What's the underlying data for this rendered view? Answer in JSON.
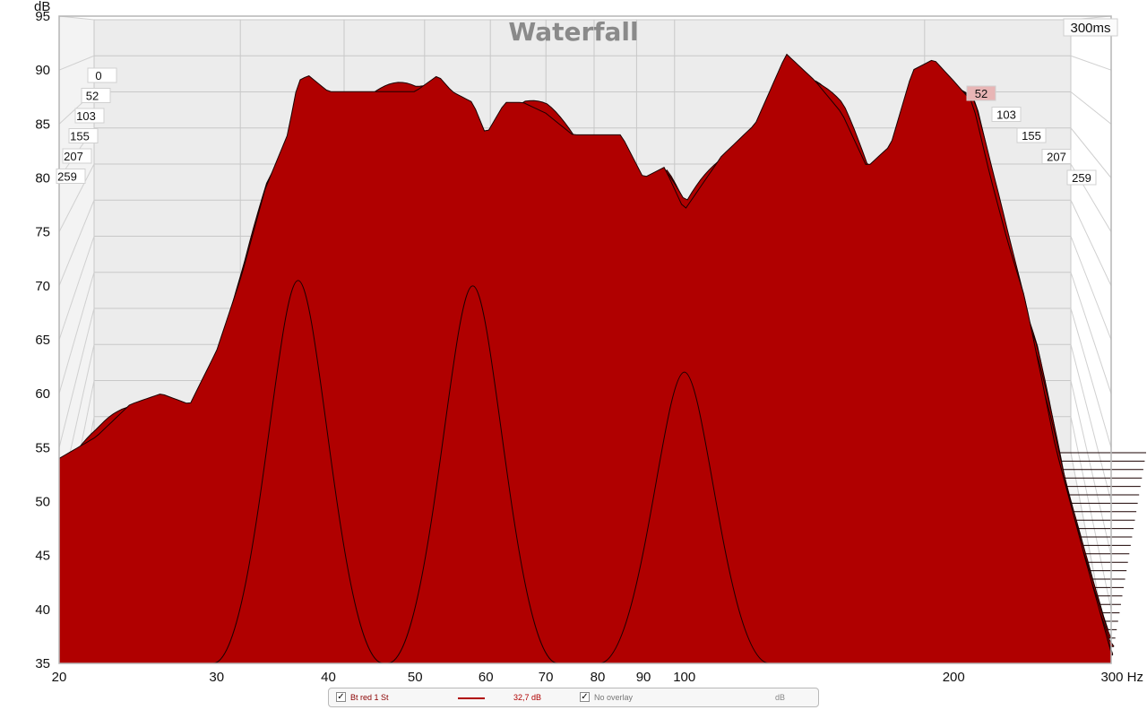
{
  "chart_data": {
    "type": "area",
    "title": "Waterfall",
    "time_window": "300ms",
    "ylabel": "dB",
    "xunit": "Hz",
    "x_scale": "log",
    "xlim": [
      20,
      300
    ],
    "ylim": [
      35,
      95
    ],
    "x_ticks": [
      "20",
      "30",
      "40",
      "50",
      "60",
      "70",
      "80",
      "90",
      "100",
      "200",
      "300 Hz"
    ],
    "y_ticks": [
      "35",
      "40",
      "45",
      "50",
      "55",
      "60",
      "65",
      "70",
      "75",
      "80",
      "85",
      "90",
      "95"
    ],
    "time_slice_labels_left": [
      "0",
      "52",
      "103",
      "155",
      "207",
      "259"
    ],
    "time_slice_labels_right": [
      "52",
      "103",
      "155",
      "207",
      "259"
    ],
    "fill_color": "#b00000",
    "grid": true,
    "front_slice_ms": 0,
    "front_slice": {
      "freq_hz": [
        20,
        22,
        24,
        26,
        28,
        30,
        32,
        34,
        36,
        37,
        38,
        40,
        42,
        45,
        48,
        50,
        53,
        55,
        58,
        60,
        63,
        66,
        70,
        75,
        80,
        85,
        90,
        95,
        100,
        110,
        120,
        130,
        140,
        150,
        160,
        170,
        180,
        190,
        200,
        210,
        220,
        230,
        240,
        250,
        260,
        280,
        300
      ],
      "level_db": [
        54,
        56,
        59,
        60,
        59,
        64,
        71,
        79,
        84,
        89,
        89.5,
        88,
        88,
        88,
        88,
        88,
        89.5,
        88,
        87,
        84,
        87,
        87,
        86,
        84,
        84,
        84,
        80,
        81,
        77,
        82,
        85,
        91.5,
        89,
        86,
        81,
        83,
        90,
        91,
        89,
        87,
        80,
        74,
        69,
        62,
        55,
        45,
        36
      ]
    },
    "decay_peaks": [
      {
        "freq_hz": 37,
        "level_db": 70.5
      },
      {
        "freq_hz": 58,
        "level_db": 70
      },
      {
        "freq_hz": 100,
        "level_db": 62
      }
    ]
  },
  "legend": {
    "series_checkbox": "✓",
    "series_name": "Bt red 1 St",
    "series_color": "#b00000",
    "series_value": "32,7 dB",
    "overlay_checkbox": "✓",
    "overlay_label": "No overlay",
    "overlay_unit": "dB"
  }
}
